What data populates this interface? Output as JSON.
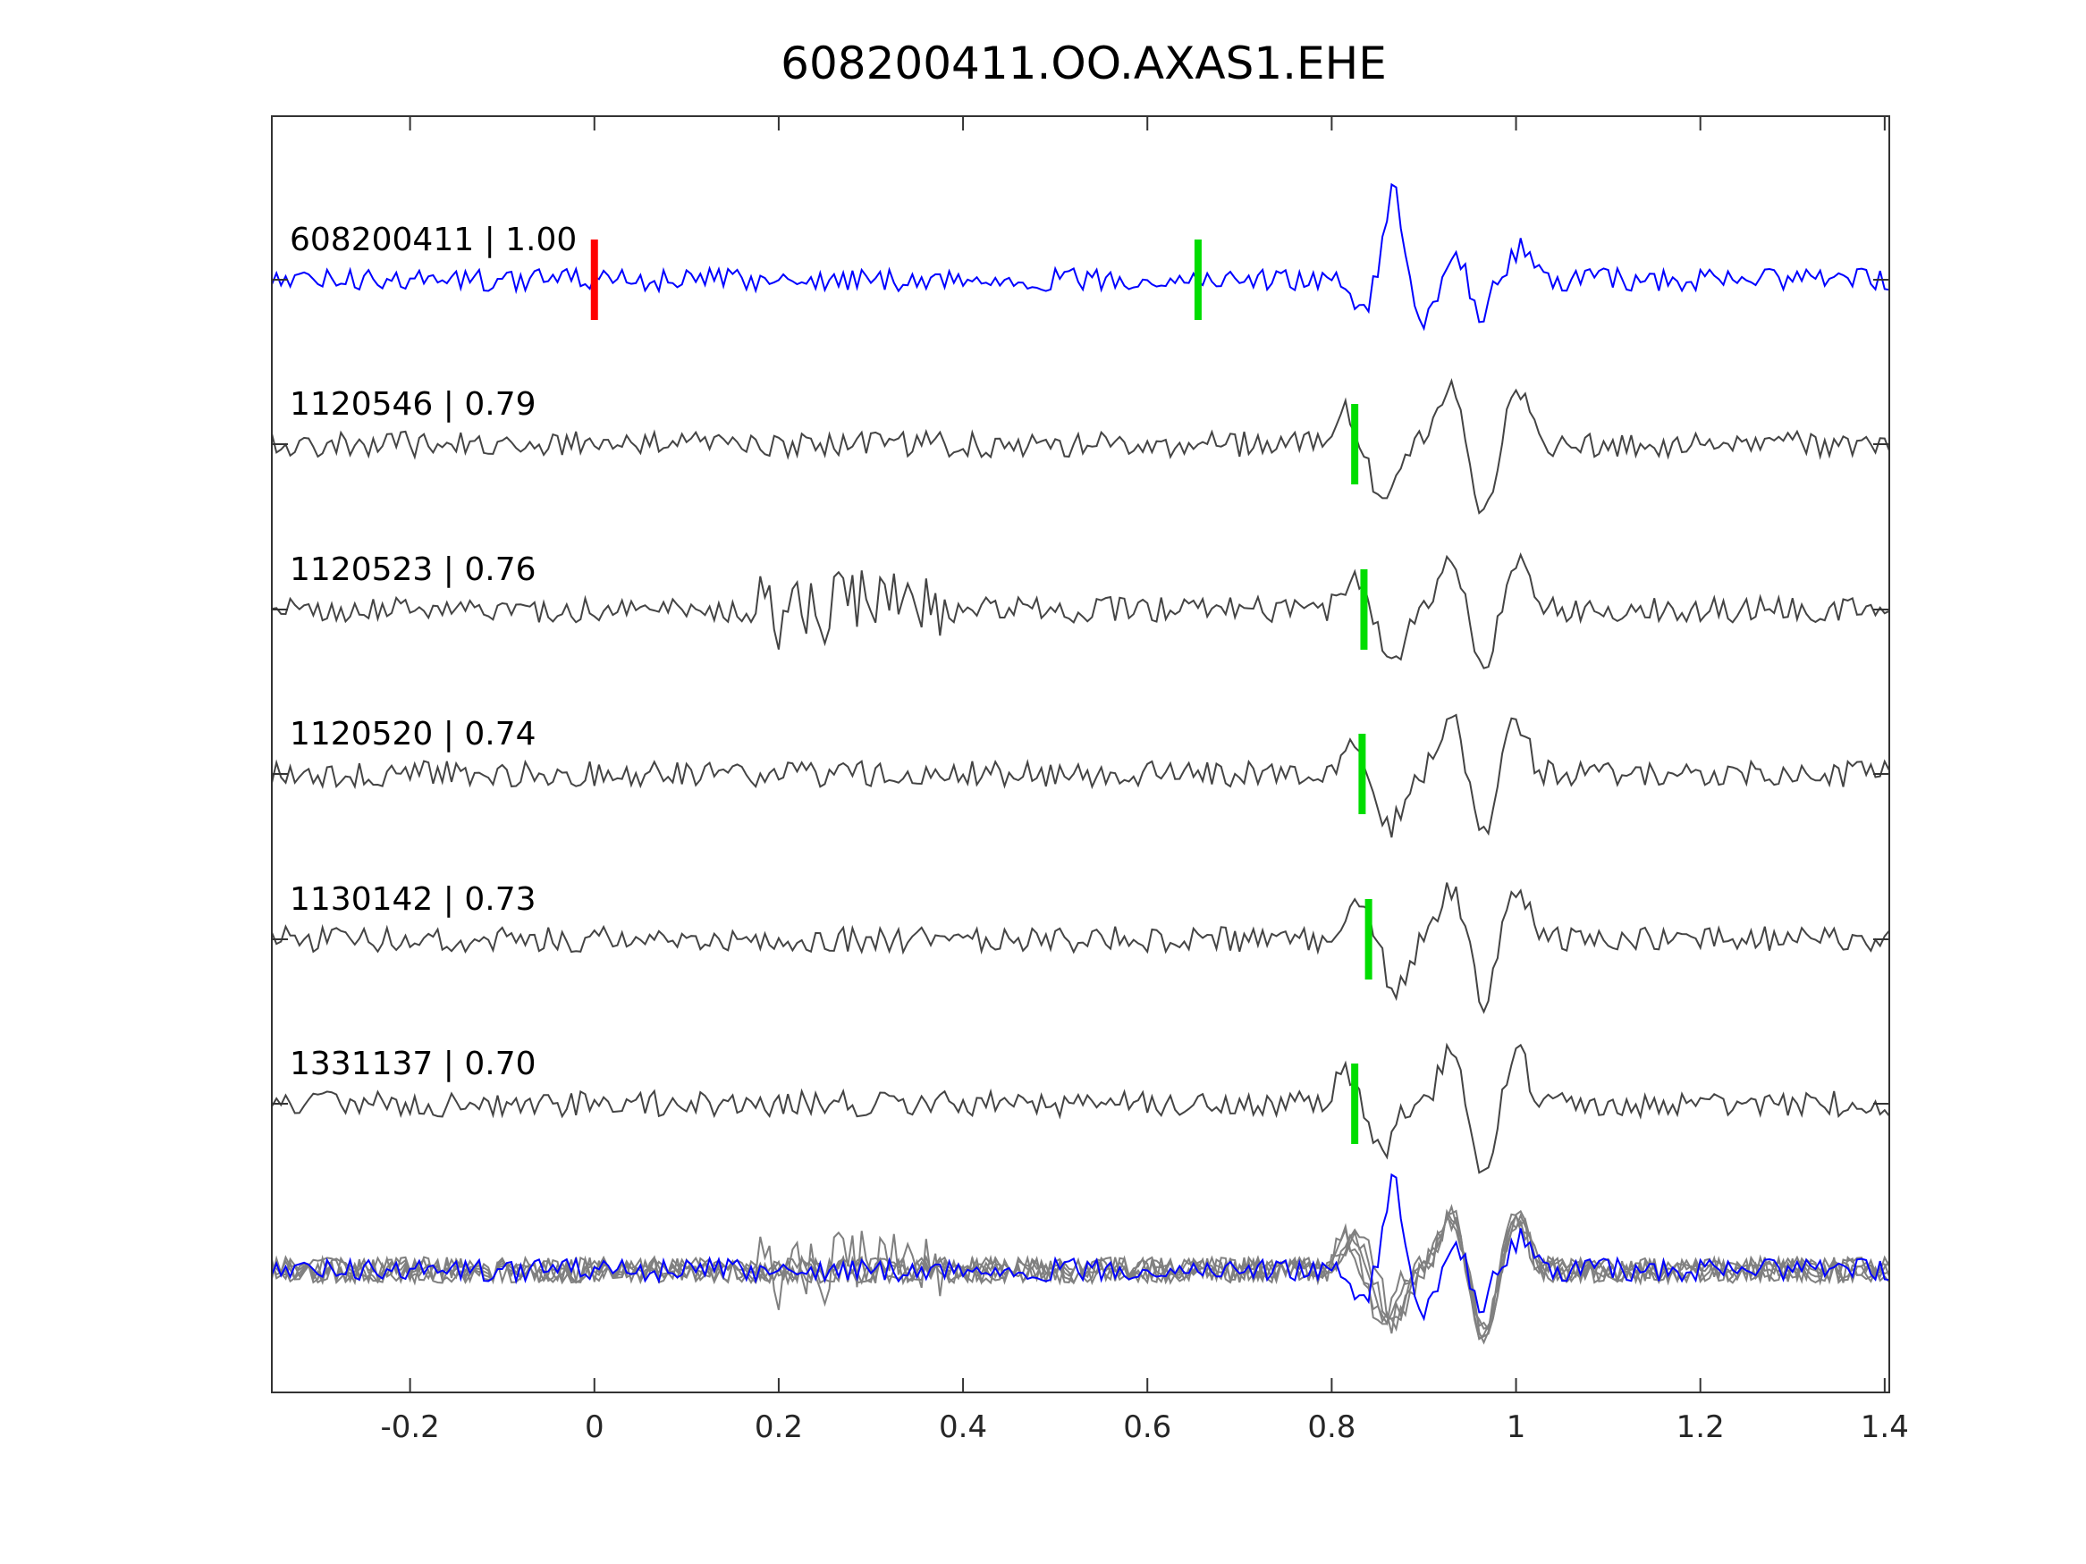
{
  "chart_data": {
    "type": "line",
    "title": "608200411.OO.AXAS1.EHE",
    "xlabel": "",
    "ylabel": "",
    "xlim": [
      -0.35,
      1.405
    ],
    "xticks": [
      -0.2,
      0,
      0.2,
      0.4,
      0.6,
      0.8,
      1,
      1.2,
      1.4
    ],
    "xtick_labels": [
      "-0.2",
      "0",
      "0.2",
      "0.4",
      "0.6",
      "0.8",
      "1",
      "1.2",
      "1.4"
    ],
    "grid": false,
    "colors": {
      "reference": "#0000ff",
      "trace": "#444444",
      "overlay": "#808080",
      "origin_marker": "#ff0000",
      "pick_marker": "#00dd00"
    },
    "series": [
      {
        "name": "608200411",
        "score": "1.00",
        "label": "608200411 | 1.00",
        "reference": true,
        "origin_marker": 0,
        "pick": 0.655
      },
      {
        "name": "1120546",
        "score": "0.79",
        "label": "1120546 | 0.79",
        "pick": 0.825
      },
      {
        "name": "1120523",
        "score": "0.76",
        "label": "1120523 | 0.76",
        "pick": 0.835
      },
      {
        "name": "1120520",
        "score": "0.74",
        "label": "1120520 | 0.74",
        "pick": 0.833
      },
      {
        "name": "1130142",
        "score": "0.73",
        "label": "1130142 | 0.73",
        "pick": 0.84
      },
      {
        "name": "1331137",
        "score": "0.70",
        "label": "1331137 | 0.70",
        "pick": 0.825
      }
    ],
    "stack": {
      "name": "overlay of all traces"
    }
  }
}
